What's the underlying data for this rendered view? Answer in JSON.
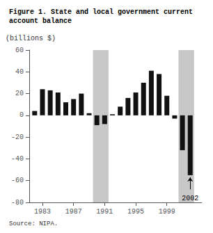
{
  "chart_data": {
    "type": "bar",
    "title": "Figure 1. State and local government current\naccount balance",
    "ylabel": "(billions $)",
    "source": "Source: NIPA.",
    "x": [
      1982,
      1983,
      1984,
      1985,
      1986,
      1987,
      1988,
      1989,
      1990,
      1991,
      1992,
      1993,
      1994,
      1995,
      1996,
      1997,
      1998,
      1999,
      2000,
      2001,
      2002
    ],
    "values": [
      4,
      24,
      23,
      21,
      12,
      15,
      20,
      2,
      -9,
      -8,
      1,
      8,
      16,
      21,
      30,
      41,
      38,
      18,
      -3,
      -32,
      -55
    ],
    "color": "#111111",
    "bands": [
      [
        1989.5,
        1991.5
      ],
      [
        2000.5,
        2002.5
      ]
    ],
    "band_color": "#c8c8c8",
    "annotations": [
      {
        "text": "2002",
        "x": 2002,
        "y": -72,
        "arrow_from": -68,
        "arrow_to": -57
      }
    ],
    "xlim": [
      1981.3,
      2003.5
    ],
    "xticks": [
      1983,
      1987,
      1991,
      1995,
      1999
    ],
    "ylim": [
      -80,
      60
    ],
    "yticks": [
      -80,
      -60,
      -40,
      -20,
      0,
      20,
      40,
      60
    ],
    "grid": false
  }
}
